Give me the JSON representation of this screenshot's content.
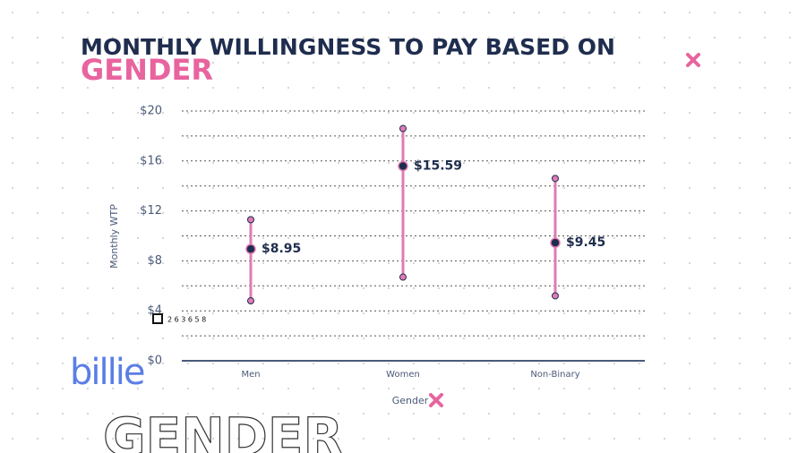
{
  "chart_data": {
    "type": "range",
    "title": "MONTHLY WILLINGNESS TO PAY BASED ON",
    "title_highlight": "GENDER",
    "y_label": "Monthly WTP",
    "x_label": "Gender",
    "categories": [
      "Men",
      "Women",
      "Non-Binary"
    ],
    "values": [
      8.95,
      15.59,
      9.45
    ],
    "value_labels": [
      "$8.95",
      "$15.59",
      "$9.45"
    ],
    "low": [
      4.8,
      6.7,
      5.2
    ],
    "high": [
      11.3,
      18.6,
      14.6
    ],
    "color": "#e07bb5",
    "point_color": "#1f2d4e",
    "ylim": [
      0,
      20
    ],
    "yticks": [
      {
        "value": 0,
        "label": "$0"
      },
      {
        "value": 4,
        "label": "$4"
      },
      {
        "value": 8,
        "label": "$8"
      },
      {
        "value": 12,
        "label": "$12"
      },
      {
        "value": 16,
        "label": "$16"
      },
      {
        "value": 20,
        "label": "$20"
      }
    ],
    "minor_yticks": [
      2,
      6,
      10,
      14,
      18
    ],
    "grid": true
  },
  "decorations": {
    "logo": "billie",
    "watermark": "GENDER",
    "code": "2 6 3 6 5 8"
  }
}
